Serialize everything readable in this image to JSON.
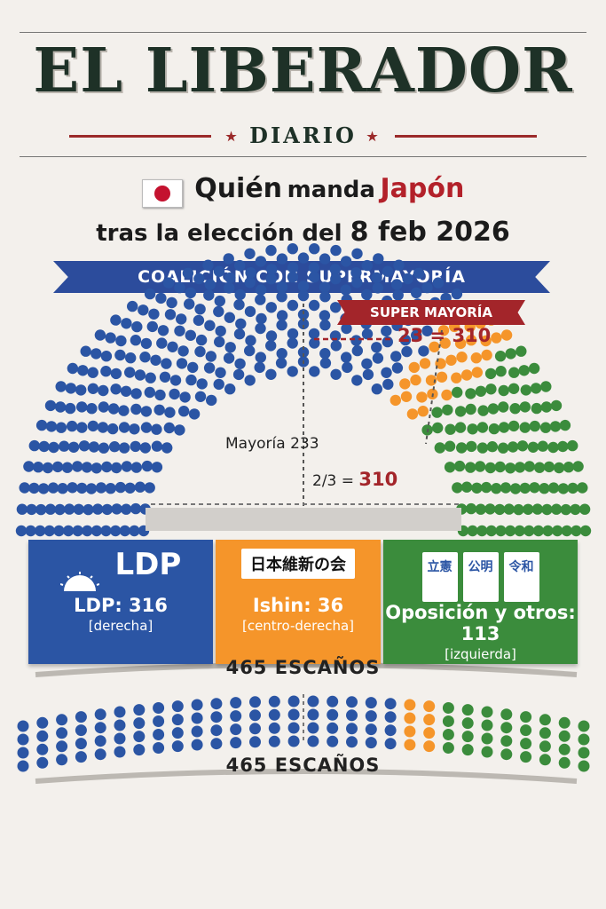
{
  "masthead": {
    "name": "EL LIBERADOR",
    "sub": "DIARIO"
  },
  "headline": {
    "line1_a": "Quién",
    "line1_b": "manda",
    "line1_c": "Japón",
    "line2_a": "tras la elección del",
    "line2_b": "8 feb 2026"
  },
  "banner": "COALICIÓN CON SUPERMAYORÍA",
  "supermajority": {
    "label": "SUPER MAYORÍA",
    "eq": "23 = 310"
  },
  "thresholds": {
    "majority": "Mayoría 233",
    "twothirds_label": "2/3 =",
    "twothirds_value": "310"
  },
  "parties": {
    "ldp": {
      "logo": "LDP",
      "value": "LDP: 316",
      "ideology": "[derecha]"
    },
    "ishin": {
      "logo": "日本維新の会",
      "value": "Ishin: 36",
      "ideology": "[centro-derecha]"
    },
    "opp": {
      "logos": [
        "立憲",
        "公明",
        "令和"
      ],
      "value": "Oposición y otros: 113",
      "ideology": "[izquierda]"
    }
  },
  "total_1": "465 ESCAÑOS",
  "total_2": "465 ESCAÑOS",
  "colors": {
    "ldp": "#2b55a4",
    "ishin": "#f5952a",
    "opp": "#3b8c3c",
    "accent": "#a3252a"
  },
  "chart_data": {
    "type": "parliament",
    "total_seats": 465,
    "series": [
      {
        "name": "LDP",
        "value": 316,
        "color": "#2b55a4"
      },
      {
        "name": "Ishin",
        "value": 36,
        "color": "#f5952a"
      },
      {
        "name": "Oposición y otros",
        "value": 113,
        "color": "#3b8c3c"
      }
    ],
    "thresholds": {
      "majority": 233,
      "supermajority": 310
    }
  }
}
